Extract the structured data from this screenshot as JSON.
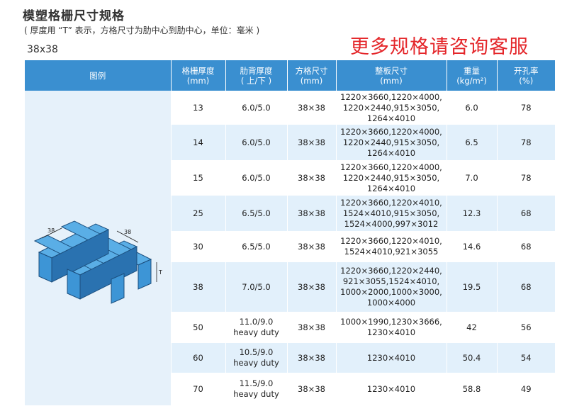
{
  "header": {
    "title": "模塑格栅尺寸规格",
    "subtitle": "( 厚度用 “T” 表示，方格尺寸为肋中心到肋中心，单位：毫米 )",
    "model": "38x38",
    "promo": "更多规格请咨询客服"
  },
  "table": {
    "columns": [
      {
        "label": "图例",
        "sub": ""
      },
      {
        "label": "格栅厚度",
        "sub": "(mm)"
      },
      {
        "label": "肋背厚度",
        "sub": "( 上/下 )"
      },
      {
        "label": "方格尺寸",
        "sub": "(mm)"
      },
      {
        "label": "整板尺寸",
        "sub": "(mm)"
      },
      {
        "label": "重量",
        "sub": "(kg/m²)"
      },
      {
        "label": "开孔率",
        "sub": "(%)"
      }
    ],
    "rows": [
      {
        "thickness": "13",
        "rib": "6.0/5.0",
        "mesh": "38×38",
        "sizes": [
          "1220×3660,1220×4000,",
          "1220×2440,915×3050,",
          "1264×4010"
        ],
        "weight": "6.0",
        "open": "78"
      },
      {
        "thickness": "14",
        "rib": "6.0/5.0",
        "mesh": "38×38",
        "sizes": [
          "1220×3660,1220×4000,",
          "1220×2440,915×3050,",
          "1264×4010"
        ],
        "weight": "6.5",
        "open": "78"
      },
      {
        "thickness": "15",
        "rib": "6.0/5.0",
        "mesh": "38×38",
        "sizes": [
          "1220×3660,1220×4000,",
          "1220×2440,915×3050,",
          "1264×4010"
        ],
        "weight": "7.0",
        "open": "78"
      },
      {
        "thickness": "25",
        "rib": "6.5/5.0",
        "mesh": "38×38",
        "sizes": [
          "1220×3660,1220×4010,",
          "1524×4010,915×3050,",
          "1524×4000,997×3012"
        ],
        "weight": "12.3",
        "open": "68"
      },
      {
        "thickness": "30",
        "rib": "6.5/5.0",
        "mesh": "38×38",
        "sizes": [
          "1220×3660,1220×4010,",
          "1524×4010,921×3055"
        ],
        "weight": "14.6",
        "open": "68"
      },
      {
        "thickness": "38",
        "rib": "7.0/5.0",
        "mesh": "38×38",
        "sizes": [
          "1220×3660,1220×2440,",
          "921×3055,1524×4010,",
          "1000×2000,1000×3000,",
          "1000×4000"
        ],
        "weight": "19.5",
        "open": "68"
      },
      {
        "thickness": "50",
        "rib": "11.0/9.0",
        "rib2": "heavy duty",
        "mesh": "38×38",
        "sizes": [
          "1000×1990,1230×3666,",
          "1230×4010"
        ],
        "weight": "42",
        "open": "56"
      },
      {
        "thickness": "60",
        "rib": "10.5/9.0",
        "rib2": "heavy duty",
        "mesh": "38×38",
        "sizes": [
          "1230×4010"
        ],
        "weight": "50.4",
        "open": "54"
      },
      {
        "thickness": "70",
        "rib": "11.5/9.0",
        "rib2": "heavy duty",
        "mesh": "38×38",
        "sizes": [
          "1230×4010"
        ],
        "weight": "58.8",
        "open": "49"
      }
    ]
  },
  "illustration": {
    "dim_label_1": "38",
    "dim_label_2": "38",
    "thickness_label": "T",
    "grating_color": "#3d95d6",
    "grating_dark": "#2a72b0"
  }
}
